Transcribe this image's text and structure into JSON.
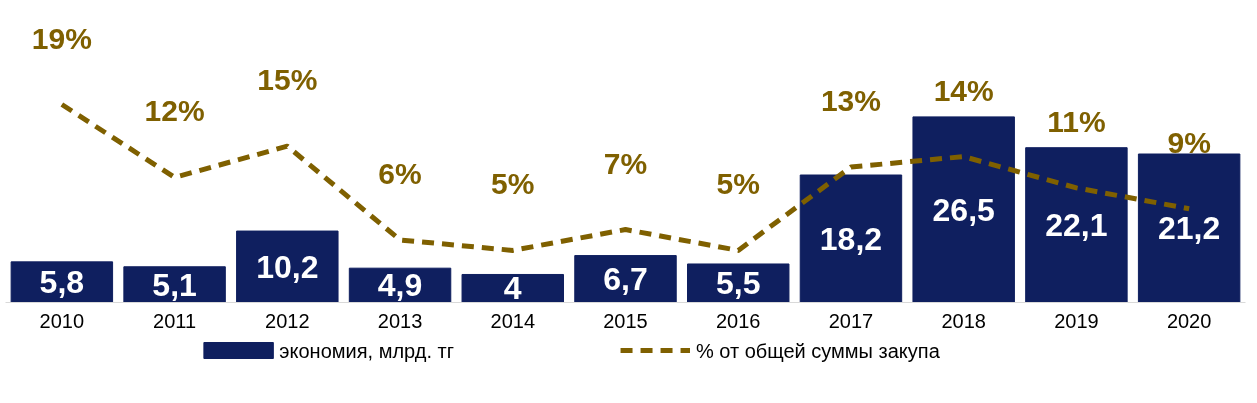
{
  "chart_data": {
    "type": "bar",
    "categories": [
      "2010",
      "2011",
      "2012",
      "2013",
      "2014",
      "2015",
      "2016",
      "2017",
      "2018",
      "2019",
      "2020"
    ],
    "series": [
      {
        "name": "экономия, млрд. тг",
        "color": "#0f1f5f",
        "values": [
          5.8,
          5.1,
          10.2,
          4.9,
          4,
          6.7,
          5.5,
          18.2,
          26.5,
          22.1,
          21.2
        ],
        "value_labels": [
          "5,8",
          "5,1",
          "10,2",
          "4,9",
          "4",
          "6,7",
          "5,5",
          "18,2",
          "26,5",
          "22,1",
          "21,2"
        ]
      },
      {
        "name": "% от общей суммы закупа",
        "type": "line",
        "axis": "y2",
        "color": "#7f6000",
        "line_style": "dashed",
        "values": [
          19,
          12,
          15,
          6,
          5,
          7,
          5,
          13,
          14,
          11,
          9
        ],
        "value_labels": [
          "19%",
          "12%",
          "15%",
          "6%",
          "5%",
          "7%",
          "5%",
          "13%",
          "14%",
          "11%",
          "9%"
        ]
      }
    ],
    "tick_labels": "x",
    "grid": false,
    "legend": "bottom"
  }
}
